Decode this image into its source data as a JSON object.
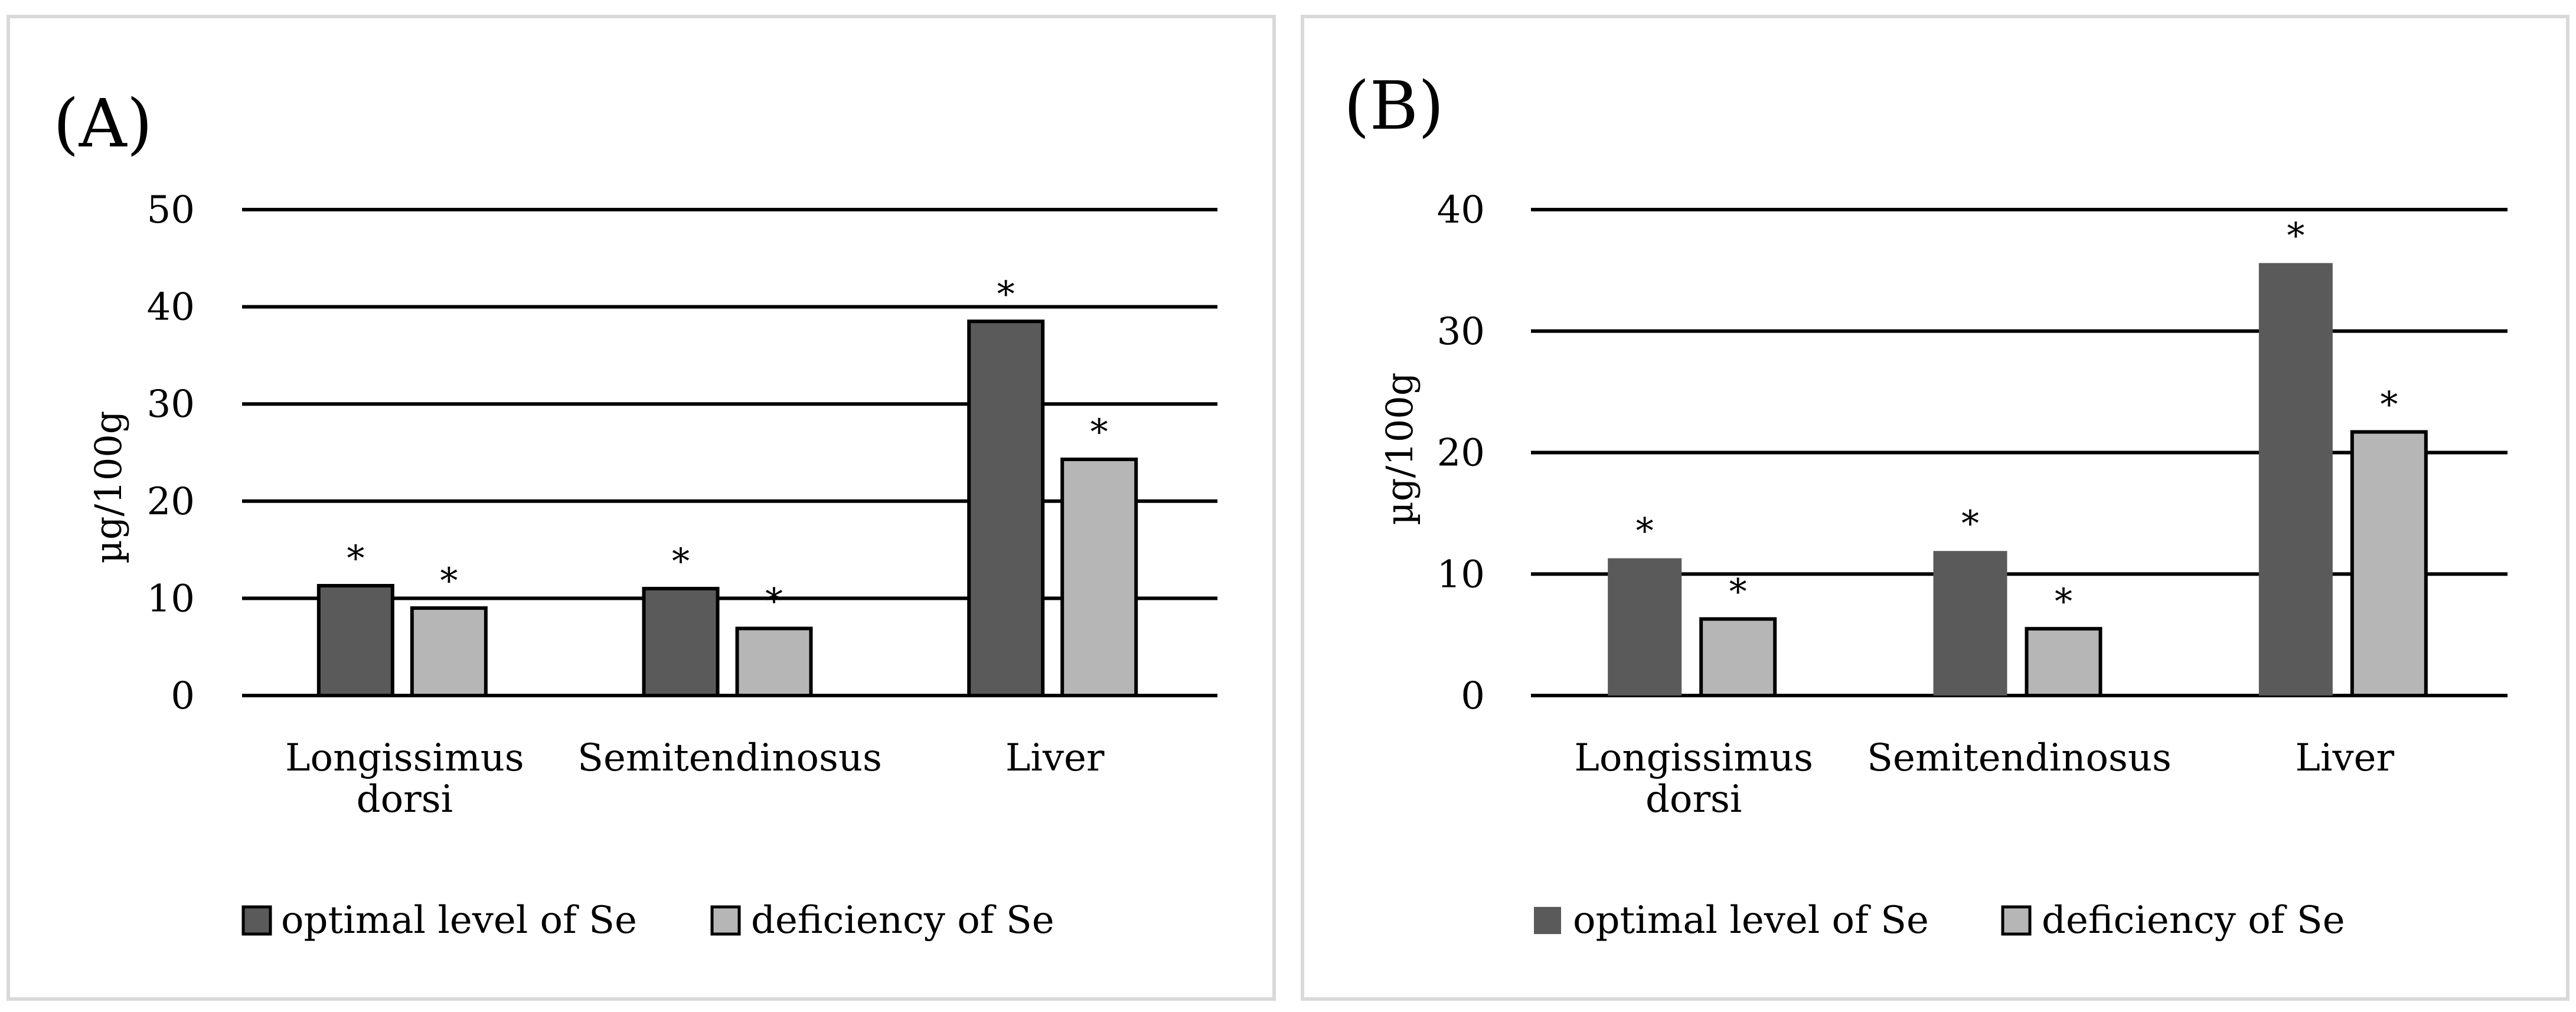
{
  "colors": {
    "optimal": "#5a5a5a",
    "deficiency": "#b6b6b6",
    "grid": "#000000",
    "frame": "#d9d9d9"
  },
  "legend": {
    "optimal": "optimal level of Se",
    "deficiency": "deficiency of Se"
  },
  "chart_data": [
    {
      "type": "bar",
      "panel_label": "(A)",
      "ylabel": "µg/100g",
      "ylim": [
        0,
        50
      ],
      "yticks": [
        0,
        10,
        20,
        30,
        40,
        50
      ],
      "categories": [
        [
          "Longissimus",
          "dorsi"
        ],
        [
          "Semitendinosus"
        ],
        [
          "Liver"
        ]
      ],
      "series": [
        {
          "name": "optimal level of Se",
          "values": [
            11.3,
            11.0,
            38.5
          ],
          "annotations": [
            "*",
            "*",
            "*"
          ],
          "outlined": true
        },
        {
          "name": "deficiency of Se",
          "values": [
            9.0,
            6.9,
            24.3
          ],
          "annotations": [
            "*",
            "*",
            "*"
          ],
          "outlined": true
        }
      ],
      "grid": true,
      "legend_position": "bottom-left"
    },
    {
      "type": "bar",
      "panel_label": "(B)",
      "ylabel": "µg/100g",
      "ylim": [
        0,
        40
      ],
      "yticks": [
        0,
        10,
        20,
        30,
        40
      ],
      "categories": [
        [
          "Longissimus",
          "dorsi"
        ],
        [
          "Semitendinosus"
        ],
        [
          "Liver"
        ]
      ],
      "series": [
        {
          "name": "optimal level of Se",
          "values": [
            11.3,
            11.9,
            35.6
          ],
          "annotations": [
            "*",
            "*",
            "*"
          ],
          "outlined": false
        },
        {
          "name": "deficiency of Se",
          "values": [
            6.3,
            5.5,
            21.7
          ],
          "annotations": [
            "*",
            "*",
            "*"
          ],
          "outlined": true
        }
      ],
      "grid": true,
      "legend_position": "bottom-left"
    }
  ]
}
